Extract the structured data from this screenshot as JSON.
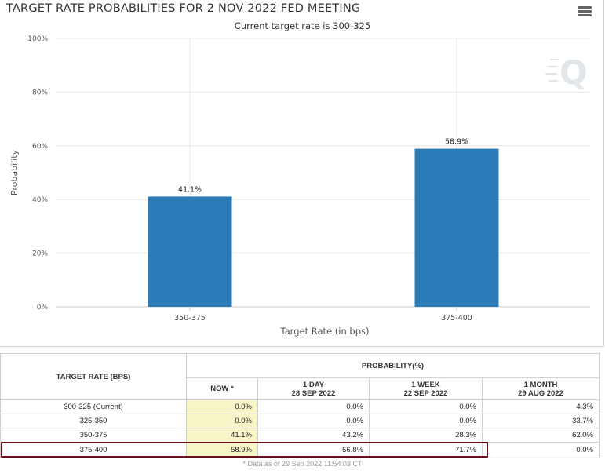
{
  "chart_data": {
    "type": "bar",
    "title": "TARGET RATE PROBABILITIES FOR 2 NOV 2022 FED MEETING",
    "subtitle": "Current target rate is 300-325",
    "categories": [
      "350-375",
      "375-400"
    ],
    "values": [
      41.1,
      58.9
    ],
    "value_labels": [
      "41.1%",
      "58.9%"
    ],
    "xlabel": "Target Rate (in bps)",
    "ylabel": "Probability",
    "ylim": [
      0,
      100
    ],
    "yticks": [
      0,
      20,
      40,
      60,
      80,
      100
    ],
    "ytick_labels": [
      "0%",
      "20%",
      "40%",
      "60%",
      "80%",
      "100%"
    ],
    "grid": true,
    "bar_color": "#2b7bb9"
  },
  "table": {
    "header_rate": "TARGET RATE (BPS)",
    "header_prob": "PROBABILITY(%)",
    "columns": [
      {
        "line1": "NOW *",
        "line2": ""
      },
      {
        "line1": "1 DAY",
        "line2": "28 SEP 2022"
      },
      {
        "line1": "1 WEEK",
        "line2": "22 SEP 2022"
      },
      {
        "line1": "1 MONTH",
        "line2": "29 AUG 2022"
      }
    ],
    "rows": [
      {
        "rate": "300-325 (Current)",
        "values": [
          "0.0%",
          "0.0%",
          "0.0%",
          "4.3%"
        ]
      },
      {
        "rate": "325-350",
        "values": [
          "0.0%",
          "0.0%",
          "0.0%",
          "33.7%"
        ]
      },
      {
        "rate": "350-375",
        "values": [
          "41.1%",
          "43.2%",
          "28.3%",
          "62.0%"
        ]
      },
      {
        "rate": "375-400",
        "values": [
          "58.9%",
          "56.8%",
          "71.7%",
          "0.0%"
        ]
      }
    ],
    "note": "* Data as of 29 Sep 2022 11:54:03 CT"
  },
  "colors": {
    "highlight": "#6b0f1a",
    "now_column": "#f7f4c8"
  }
}
